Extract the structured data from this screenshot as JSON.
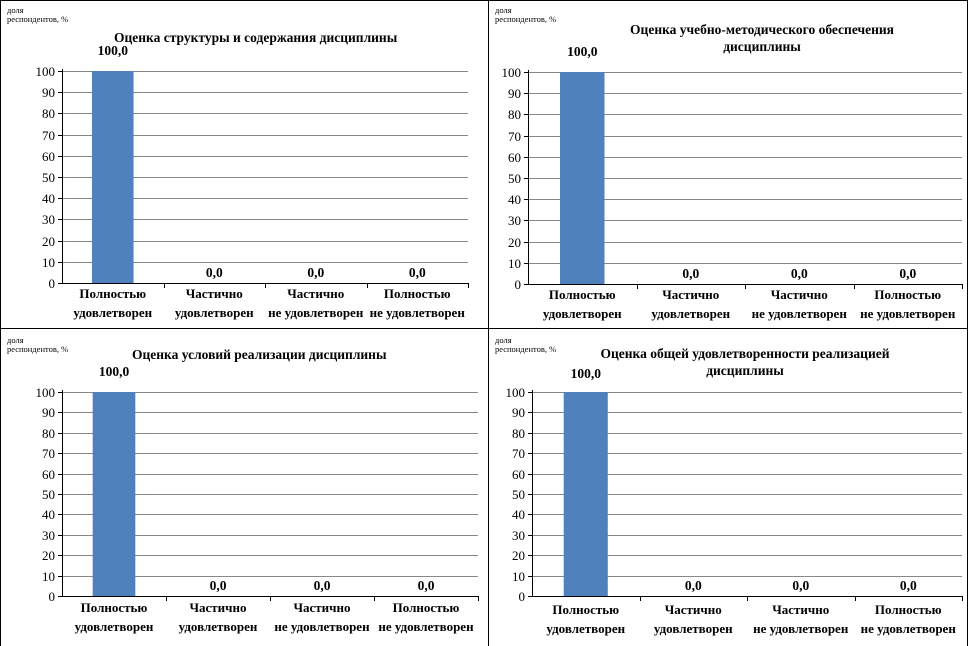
{
  "colors": {
    "bar": "#4f81bd",
    "gridline": "#888888",
    "axis": "#000000",
    "text": "#000000"
  },
  "chart_data": [
    {
      "type": "bar",
      "title": "Оценка структуры и содержания дисциплины",
      "ylabel": "доля респондентов, %",
      "ylabel_lines": [
        "доля",
        "респондентов, %"
      ],
      "categories": [
        [
          "Полностью",
          "удовлетворен"
        ],
        [
          "Частично",
          "удовлетворен"
        ],
        [
          "Частично",
          "не удовлетворен"
        ],
        [
          "Полностью",
          "не удовлетворен"
        ]
      ],
      "values": [
        100.0,
        0.0,
        0.0,
        0.0
      ],
      "value_labels": [
        "100,0",
        "0,0",
        "0,0",
        "0,0"
      ],
      "ylim": [
        0,
        100
      ],
      "yticks": [
        0,
        10,
        20,
        30,
        40,
        50,
        60,
        70,
        80,
        90,
        100
      ],
      "grid": true,
      "legend": "none"
    },
    {
      "type": "bar",
      "title": "Оценка учебно-методического обеспечения дисциплины",
      "title_lines": [
        "Оценка учебно-методического обеспечения",
        "дисциплины"
      ],
      "ylabel": "доля респондентов, %",
      "ylabel_lines": [
        "доля",
        "респондентов, %"
      ],
      "categories": [
        [
          "Полностью",
          "удовлетворен"
        ],
        [
          "Частично",
          "удовлетворен"
        ],
        [
          "Частично",
          "не удовлетворен"
        ],
        [
          "Полностью",
          "не удовлетворен"
        ]
      ],
      "values": [
        100.0,
        0.0,
        0.0,
        0.0
      ],
      "value_labels": [
        "100,0",
        "0,0",
        "0,0",
        "0,0"
      ],
      "ylim": [
        0,
        100
      ],
      "yticks": [
        0,
        10,
        20,
        30,
        40,
        50,
        60,
        70,
        80,
        90,
        100
      ],
      "grid": true,
      "legend": "none"
    },
    {
      "type": "bar",
      "title": "Оценка условий реализации дисциплины",
      "ylabel": "доля респондентов, %",
      "ylabel_lines": [
        "доля",
        "респондентов, %"
      ],
      "categories": [
        [
          "Полностью",
          "удовлетворен"
        ],
        [
          "Частично",
          "удовлетворен"
        ],
        [
          "Частично",
          "не удовлетворен"
        ],
        [
          "Полностью",
          "не удовлетворен"
        ]
      ],
      "values": [
        100.0,
        0.0,
        0.0,
        0.0
      ],
      "value_labels": [
        "100,0",
        "0,0",
        "0,0",
        "0,0"
      ],
      "ylim": [
        0,
        100
      ],
      "yticks": [
        0,
        10,
        20,
        30,
        40,
        50,
        60,
        70,
        80,
        90,
        100
      ],
      "grid": true,
      "legend": "none"
    },
    {
      "type": "bar",
      "title": "Оценка общей удовлетворенности реализацией дисциплины",
      "title_lines": [
        "Оценка общей удовлетворенности реализацией",
        "дисциплины"
      ],
      "ylabel": "доля респондентов, %",
      "ylabel_lines": [
        "доля",
        "респондентов, %"
      ],
      "categories": [
        [
          "Полностью",
          "удовлетворен"
        ],
        [
          "Частично",
          "удовлетворен"
        ],
        [
          "Частично",
          "не удовлетворен"
        ],
        [
          "Полностью",
          "не удовлетворен"
        ]
      ],
      "values": [
        100.0,
        0.0,
        0.0,
        0.0
      ],
      "value_labels": [
        "100,0",
        "0,0",
        "0,0",
        "0,0"
      ],
      "ylim": [
        0,
        100
      ],
      "yticks": [
        0,
        10,
        20,
        30,
        40,
        50,
        60,
        70,
        80,
        90,
        100
      ],
      "grid": true,
      "legend": "none"
    }
  ]
}
